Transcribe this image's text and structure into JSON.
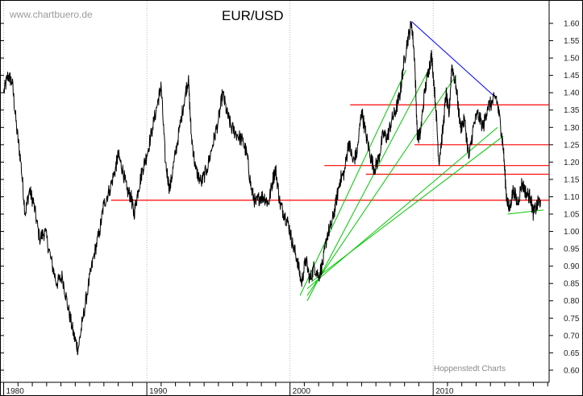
{
  "chart_data": {
    "type": "line",
    "title": "EUR/USD",
    "watermark": "www.chartbuero.de",
    "credit": "Hoppenstedt Charts",
    "xlabel": "",
    "ylabel": "",
    "xlim": [
      1979.8,
      2018.1
    ],
    "ylim": [
      0.565,
      1.665
    ],
    "y_axis_position": "right",
    "grid": "vertical dotted lines at decades",
    "y_ticks": [
      0.6,
      0.65,
      0.7,
      0.75,
      0.8,
      0.85,
      0.9,
      0.95,
      1.0,
      1.05,
      1.1,
      1.15,
      1.2,
      1.25,
      1.3,
      1.35,
      1.4,
      1.45,
      1.5,
      1.55,
      1.6
    ],
    "x_ticks": [
      {
        "value": 1980,
        "label": "1980"
      },
      {
        "value": 1990,
        "label": "1990"
      },
      {
        "value": 2000,
        "label": "2000"
      },
      {
        "value": 2010,
        "label": "2010"
      }
    ],
    "series": [
      {
        "color": "#000000",
        "points": [
          [
            1980.0,
            1.4
          ],
          [
            1980.3,
            1.45
          ],
          [
            1980.6,
            1.43
          ],
          [
            1980.9,
            1.3
          ],
          [
            1981.2,
            1.2
          ],
          [
            1981.5,
            1.05
          ],
          [
            1981.8,
            1.12
          ],
          [
            1982.1,
            1.08
          ],
          [
            1982.5,
            0.98
          ],
          [
            1982.9,
            1.0
          ],
          [
            1983.3,
            0.92
          ],
          [
            1983.7,
            0.85
          ],
          [
            1984.1,
            0.87
          ],
          [
            1984.5,
            0.78
          ],
          [
            1984.9,
            0.7
          ],
          [
            1985.2,
            0.66
          ],
          [
            1985.5,
            0.74
          ],
          [
            1985.9,
            0.84
          ],
          [
            1986.3,
            0.93
          ],
          [
            1986.7,
            1.0
          ],
          [
            1987.0,
            1.08
          ],
          [
            1987.4,
            1.12
          ],
          [
            1987.8,
            1.18
          ],
          [
            1988.0,
            1.22
          ],
          [
            1988.3,
            1.18
          ],
          [
            1988.6,
            1.12
          ],
          [
            1988.9,
            1.1
          ],
          [
            1989.1,
            1.05
          ],
          [
            1989.4,
            1.12
          ],
          [
            1989.7,
            1.18
          ],
          [
            1990.0,
            1.22
          ],
          [
            1990.4,
            1.3
          ],
          [
            1990.8,
            1.38
          ],
          [
            1991.0,
            1.42
          ],
          [
            1991.3,
            1.2
          ],
          [
            1991.6,
            1.12
          ],
          [
            1991.9,
            1.2
          ],
          [
            1992.3,
            1.3
          ],
          [
            1992.7,
            1.4
          ],
          [
            1992.9,
            1.44
          ],
          [
            1993.1,
            1.28
          ],
          [
            1993.4,
            1.18
          ],
          [
            1993.8,
            1.14
          ],
          [
            1994.2,
            1.18
          ],
          [
            1994.6,
            1.25
          ],
          [
            1995.0,
            1.32
          ],
          [
            1995.3,
            1.4
          ],
          [
            1995.6,
            1.34
          ],
          [
            1995.9,
            1.3
          ],
          [
            1996.3,
            1.28
          ],
          [
            1996.7,
            1.26
          ],
          [
            1997.0,
            1.22
          ],
          [
            1997.3,
            1.12
          ],
          [
            1997.6,
            1.08
          ],
          [
            1997.9,
            1.1
          ],
          [
            1998.2,
            1.1
          ],
          [
            1998.5,
            1.08
          ],
          [
            1998.8,
            1.15
          ],
          [
            1999.0,
            1.18
          ],
          [
            1999.3,
            1.08
          ],
          [
            1999.6,
            1.05
          ],
          [
            1999.9,
            1.02
          ],
          [
            2000.2,
            0.96
          ],
          [
            2000.5,
            0.92
          ],
          [
            2000.8,
            0.85
          ],
          [
            2001.1,
            0.92
          ],
          [
            2001.4,
            0.86
          ],
          [
            2001.7,
            0.9
          ],
          [
            2002.0,
            0.87
          ],
          [
            2002.3,
            0.91
          ],
          [
            2002.6,
            0.99
          ],
          [
            2002.9,
            1.02
          ],
          [
            2003.2,
            1.08
          ],
          [
            2003.5,
            1.15
          ],
          [
            2003.8,
            1.17
          ],
          [
            2004.1,
            1.26
          ],
          [
            2004.4,
            1.2
          ],
          [
            2004.7,
            1.23
          ],
          [
            2005.0,
            1.35
          ],
          [
            2005.3,
            1.28
          ],
          [
            2005.6,
            1.22
          ],
          [
            2005.9,
            1.18
          ],
          [
            2006.2,
            1.21
          ],
          [
            2006.5,
            1.28
          ],
          [
            2006.8,
            1.27
          ],
          [
            2007.1,
            1.32
          ],
          [
            2007.4,
            1.35
          ],
          [
            2007.7,
            1.4
          ],
          [
            2007.9,
            1.47
          ],
          [
            2008.2,
            1.55
          ],
          [
            2008.5,
            1.6
          ],
          [
            2008.7,
            1.5
          ],
          [
            2008.9,
            1.27
          ],
          [
            2009.1,
            1.28
          ],
          [
            2009.4,
            1.4
          ],
          [
            2009.7,
            1.47
          ],
          [
            2009.9,
            1.51
          ],
          [
            2010.2,
            1.35
          ],
          [
            2010.4,
            1.2
          ],
          [
            2010.7,
            1.3
          ],
          [
            2010.9,
            1.4
          ],
          [
            2011.1,
            1.33
          ],
          [
            2011.3,
            1.48
          ],
          [
            2011.6,
            1.42
          ],
          [
            2011.9,
            1.3
          ],
          [
            2012.2,
            1.32
          ],
          [
            2012.5,
            1.21
          ],
          [
            2012.8,
            1.3
          ],
          [
            2013.1,
            1.34
          ],
          [
            2013.5,
            1.3
          ],
          [
            2013.8,
            1.36
          ],
          [
            2014.1,
            1.37
          ],
          [
            2014.4,
            1.39
          ],
          [
            2014.7,
            1.31
          ],
          [
            2014.9,
            1.24
          ],
          [
            2015.1,
            1.11
          ],
          [
            2015.3,
            1.06
          ],
          [
            2015.6,
            1.12
          ],
          [
            2015.9,
            1.08
          ],
          [
            2016.2,
            1.14
          ],
          [
            2016.5,
            1.11
          ],
          [
            2016.8,
            1.1
          ],
          [
            2017.0,
            1.05
          ],
          [
            2017.3,
            1.08
          ],
          [
            2017.5,
            1.09
          ]
        ]
      }
    ],
    "horizontal_lines": [
      {
        "color": "#ff0000",
        "y": 1.365,
        "x_from": 2004.2,
        "x_to": 2018.1
      },
      {
        "color": "#ff0000",
        "y": 1.25,
        "x_from": 2008.7,
        "x_to": 2018.1
      },
      {
        "color": "#ff0000",
        "y": 1.19,
        "x_from": 2002.4,
        "x_to": 2018.1
      },
      {
        "color": "#ff0000",
        "y": 1.165,
        "x_from": 2005.3,
        "x_to": 2018.1
      },
      {
        "color": "#ff0000",
        "y": 1.09,
        "x_from": 1987.5,
        "x_to": 2018.1
      }
    ],
    "trend_lines": [
      {
        "color": "#0000ff",
        "from": [
          2008.5,
          1.605
        ],
        "to": [
          2014.4,
          1.385
        ]
      },
      {
        "color": "#00c800",
        "from": [
          2000.7,
          0.815
        ],
        "to": [
          2008.1,
          1.465
        ]
      },
      {
        "color": "#00c800",
        "from": [
          2001.2,
          0.8
        ],
        "to": [
          2009.8,
          1.475
        ]
      },
      {
        "color": "#00c800",
        "from": [
          2001.2,
          0.815
        ],
        "to": [
          2011.6,
          1.45
        ]
      },
      {
        "color": "#00c800",
        "from": [
          2001.2,
          0.835
        ],
        "to": [
          2014.5,
          1.3
        ]
      },
      {
        "color": "#00c800",
        "from": [
          2001.5,
          0.855
        ],
        "to": [
          2014.9,
          1.275
        ]
      },
      {
        "color": "#00c800",
        "from": [
          2015.2,
          1.05
        ],
        "to": [
          2017.7,
          1.062
        ]
      }
    ]
  }
}
